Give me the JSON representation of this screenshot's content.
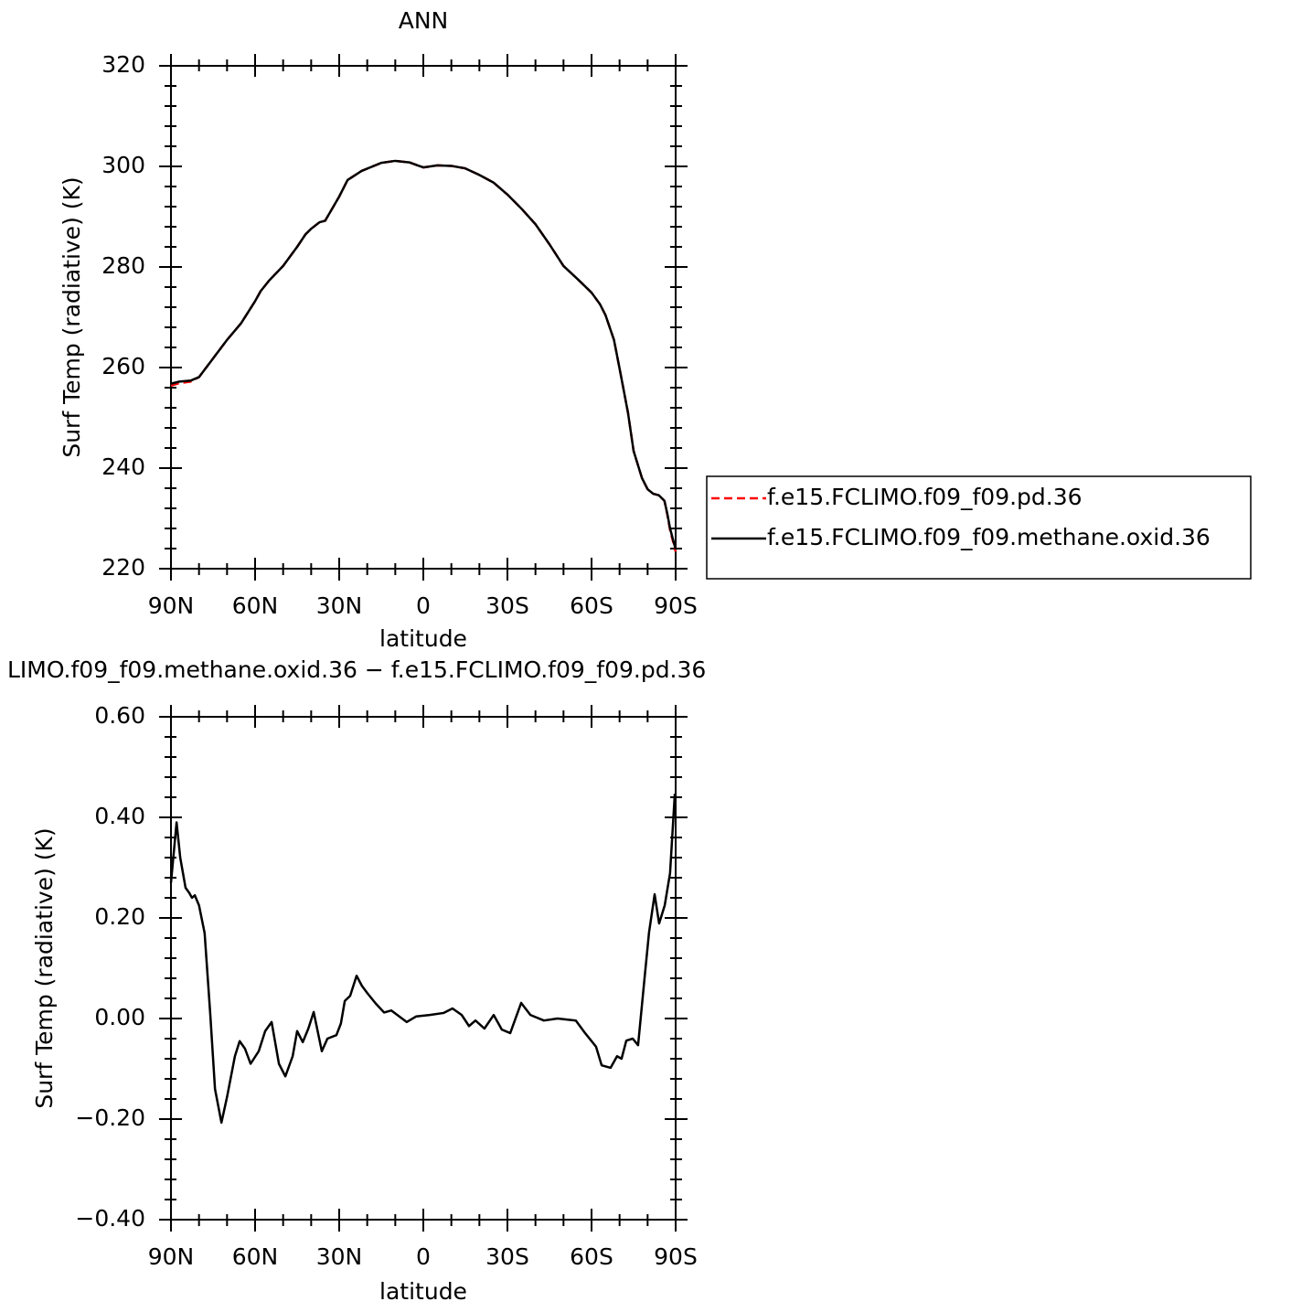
{
  "chart_data": [
    {
      "type": "line",
      "title": "ANN",
      "xlabel": "latitude",
      "ylabel": "Surf Temp (radiative) (K)",
      "x": [
        90,
        87,
        83,
        80,
        75,
        70,
        65,
        60,
        58,
        55,
        50,
        45,
        42,
        40,
        37,
        35,
        30,
        27,
        22,
        15,
        10,
        5,
        2,
        0,
        -5,
        -10,
        -15,
        -20,
        -25,
        -30,
        -35,
        -40,
        -45,
        -50,
        -55,
        -60,
        -63,
        -65,
        -68,
        -70,
        -73,
        -75,
        -78,
        -80,
        -82,
        -84,
        -86,
        -87,
        -88,
        -90
      ],
      "series": [
        {
          "name": "f.e15.FCLIMO.f09_f09.pd.36",
          "color": "#ff0000",
          "dashed": true,
          "values": [
            256.4,
            256.9,
            257.2,
            258.1,
            261.8,
            265.5,
            268.8,
            273.2,
            275.2,
            277.3,
            280.2,
            284,
            286.5,
            287.6,
            288.9,
            289.2,
            294,
            297.3,
            299.1,
            300.7,
            301.1,
            300.8,
            300.2,
            299.8,
            300.2,
            300.1,
            299.6,
            298.3,
            296.8,
            294.4,
            291.6,
            288.5,
            284.5,
            280.2,
            277.6,
            274.9,
            272.6,
            270.4,
            265.5,
            259.8,
            251,
            243.4,
            238,
            235.8,
            234.9,
            234.6,
            233.5,
            230.8,
            227.7,
            223.4
          ]
        },
        {
          "name": "f.e15.FCLIMO.f09_f09.methane.oxid.36",
          "color": "#000000",
          "dashed": false,
          "values": [
            256.8,
            257.2,
            257.4,
            258.1,
            261.8,
            265.5,
            268.8,
            273.2,
            275.2,
            277.3,
            280.2,
            284,
            286.5,
            287.6,
            288.9,
            289.2,
            294,
            297.3,
            299.1,
            300.7,
            301.1,
            300.8,
            300.2,
            299.8,
            300.2,
            300.1,
            299.6,
            298.3,
            296.8,
            294.4,
            291.6,
            288.5,
            284.5,
            280.2,
            277.6,
            274.9,
            272.6,
            270.4,
            265.5,
            259.8,
            251,
            243.4,
            238,
            235.8,
            234.9,
            234.6,
            233.5,
            231,
            228,
            223.8
          ]
        }
      ],
      "xlim": [
        90,
        -90
      ],
      "xticks": [
        {
          "value": 90,
          "label": "90N"
        },
        {
          "value": 60,
          "label": "60N"
        },
        {
          "value": 30,
          "label": "30N"
        },
        0,
        {
          "value": -30,
          "label": "30S"
        },
        {
          "value": -60,
          "label": "60S"
        },
        {
          "value": -90,
          "label": "90S"
        }
      ],
      "ylim": [
        220,
        320
      ],
      "yticks": [
        220,
        240,
        260,
        280,
        300,
        320
      ]
    },
    {
      "type": "line",
      "title": "LIMO.f09_f09.methane.oxid.36 − f.e15.FCLIMO.f09_f09.pd.36",
      "xlabel": "latitude",
      "ylabel": "Surf Temp (radiative) (K)",
      "x": [
        90,
        88,
        86.7,
        84.8,
        83.5,
        82.5,
        81.5,
        80,
        78,
        76,
        74.3,
        72,
        70,
        67.2,
        65.5,
        63.6,
        61.6,
        58.7,
        56.4,
        54.1,
        51.5,
        49.2,
        46.6,
        45,
        43,
        41,
        39.1,
        36.2,
        34.2,
        31,
        29.4,
        28,
        26.1,
        23.8,
        21.9,
        19.9,
        17,
        14,
        11.4,
        5.9,
        2.6,
        -2.3,
        -7.2,
        -10.4,
        -13.7,
        -16.3,
        -18.6,
        -21.8,
        -25.1,
        -28,
        -31,
        -34.9,
        -38.2,
        -43,
        -47.9,
        -54.4,
        -57.7,
        -61.6,
        -63.6,
        -66.8,
        -69.1,
        -70.7,
        -72.4,
        -74.7,
        -76.6,
        -78.9,
        -80.5,
        -82.5,
        -84.1,
        -86.1,
        -88,
        -89.7
      ],
      "series": [
        {
          "color": "#000000",
          "dashed": false,
          "values": [
            0.27,
            0.39,
            0.32,
            0.26,
            0.25,
            0.24,
            0.245,
            0.225,
            0.17,
            0.01,
            -0.14,
            -0.207,
            -0.156,
            -0.075,
            -0.045,
            -0.06,
            -0.09,
            -0.065,
            -0.025,
            -0.007,
            -0.09,
            -0.115,
            -0.075,
            -0.025,
            -0.047,
            -0.02,
            0.013,
            -0.065,
            -0.04,
            -0.033,
            -0.01,
            0.035,
            0.045,
            0.085,
            0.065,
            0.05,
            0.03,
            0.012,
            0.016,
            -0.007,
            0.004,
            0.007,
            0.011,
            0.02,
            0.007,
            -0.015,
            -0.004,
            -0.02,
            0.007,
            -0.022,
            -0.029,
            0.031,
            0.007,
            -0.004,
            0,
            -0.004,
            -0.029,
            -0.056,
            -0.093,
            -0.098,
            -0.075,
            -0.08,
            -0.044,
            -0.04,
            -0.053,
            0.08,
            0.171,
            0.247,
            0.189,
            0.225,
            0.289,
            0.447
          ]
        }
      ],
      "xlim": [
        90,
        -90
      ],
      "xticks": [
        {
          "value": 90,
          "label": "90N"
        },
        {
          "value": 60,
          "label": "60N"
        },
        {
          "value": 30,
          "label": "30N"
        },
        0,
        {
          "value": -30,
          "label": "30S"
        },
        {
          "value": -60,
          "label": "60S"
        },
        {
          "value": -90,
          "label": "90S"
        }
      ],
      "ylim": [
        -0.4,
        0.6
      ],
      "yticks": [
        {
          "value": -0.4,
          "label": "−0.40"
        },
        {
          "value": -0.2,
          "label": "−0.20"
        },
        {
          "value": 0,
          "label": "0.00"
        },
        {
          "value": 0.2,
          "label": "0.20"
        },
        {
          "value": 0.4,
          "label": "0.40"
        },
        {
          "value": 0.6,
          "label": "0.60"
        }
      ]
    }
  ]
}
